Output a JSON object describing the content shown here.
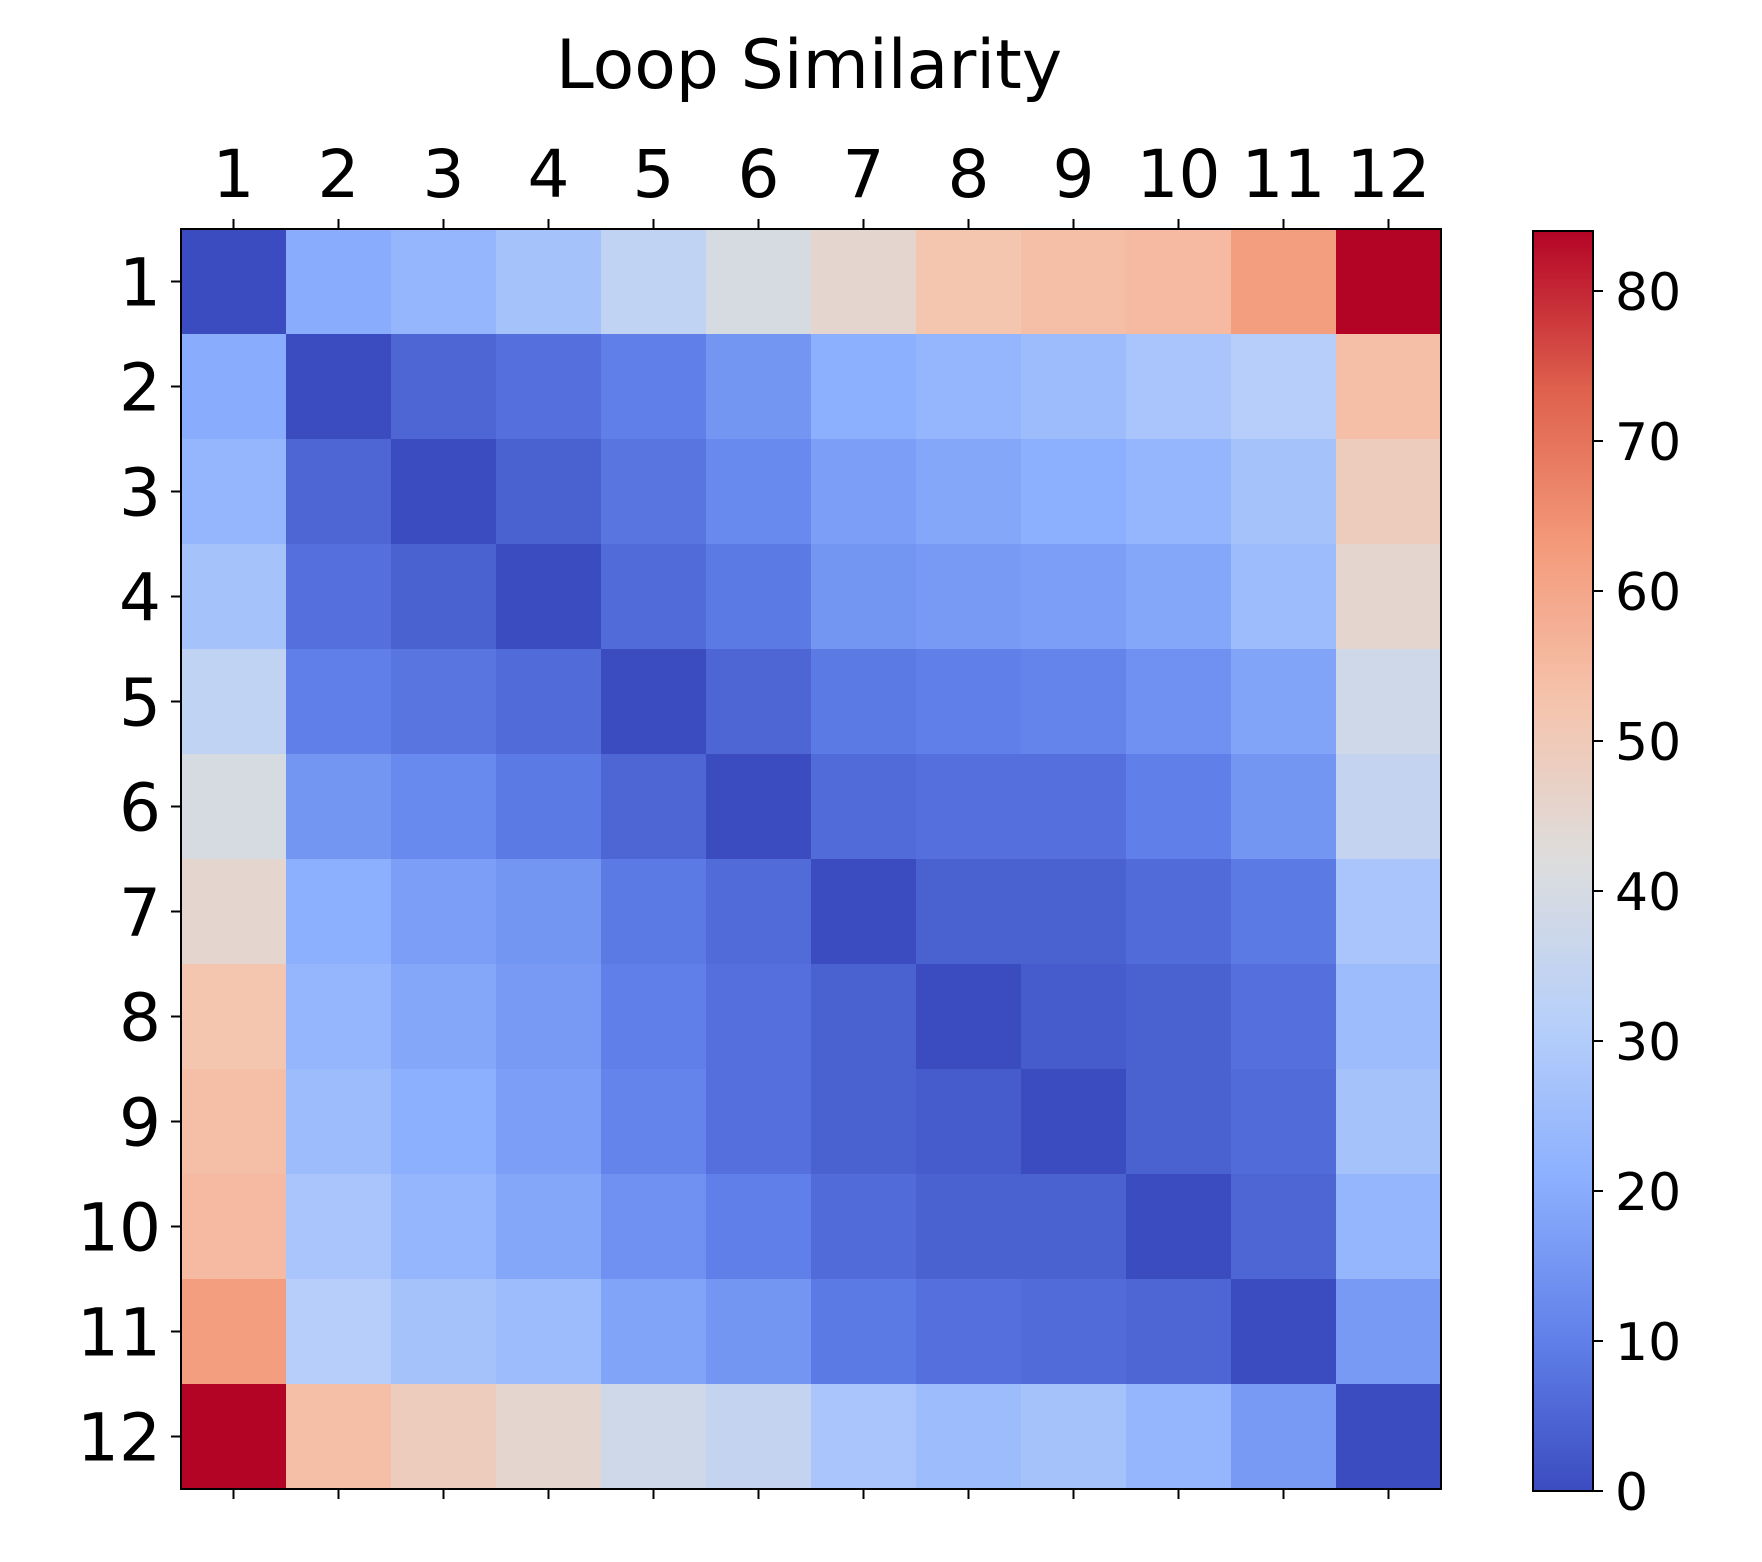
{
  "chart_data": {
    "type": "heatmap",
    "title": "Loop Similarity",
    "x_labels": [
      "1",
      "2",
      "3",
      "4",
      "5",
      "6",
      "7",
      "8",
      "9",
      "10",
      "11",
      "12"
    ],
    "y_labels": [
      "1",
      "2",
      "3",
      "4",
      "5",
      "6",
      "7",
      "8",
      "9",
      "10",
      "11",
      "12"
    ],
    "x_tick_position": "top",
    "colormap": "coolwarm",
    "vmin": 0,
    "vmax": 84,
    "colorbar_ticks": [
      0,
      10,
      20,
      30,
      40,
      50,
      60,
      70,
      80
    ],
    "colorbar_tick_labels": [
      "0",
      "10",
      "20",
      "30",
      "40",
      "50",
      "60",
      "70",
      "80"
    ],
    "values": [
      [
        0,
        20,
        23,
        27,
        34,
        40,
        45,
        52,
        54,
        55,
        62,
        84
      ],
      [
        20,
        0,
        5,
        7,
        10,
        15,
        21,
        23,
        25,
        28,
        31,
        54
      ],
      [
        23,
        5,
        0,
        4,
        8,
        12,
        17,
        19,
        21,
        23,
        27,
        49
      ],
      [
        27,
        7,
        4,
        0,
        6,
        9,
        15,
        16,
        17,
        19,
        25,
        45
      ],
      [
        34,
        10,
        8,
        6,
        0,
        5,
        9,
        10,
        11,
        14,
        18,
        38
      ],
      [
        40,
        15,
        12,
        9,
        5,
        0,
        6,
        7,
        7,
        10,
        15,
        35
      ],
      [
        45,
        21,
        17,
        15,
        9,
        6,
        0,
        4,
        4,
        6,
        9,
        28
      ],
      [
        52,
        23,
        19,
        16,
        10,
        7,
        4,
        0,
        3,
        4,
        7,
        25
      ],
      [
        54,
        25,
        21,
        17,
        11,
        7,
        4,
        3,
        0,
        4,
        6,
        27
      ],
      [
        55,
        28,
        23,
        19,
        14,
        10,
        6,
        4,
        4,
        0,
        5,
        23
      ],
      [
        62,
        31,
        27,
        25,
        18,
        15,
        9,
        7,
        6,
        5,
        0,
        16
      ],
      [
        84,
        54,
        49,
        45,
        38,
        35,
        28,
        25,
        27,
        23,
        16,
        0
      ]
    ]
  }
}
